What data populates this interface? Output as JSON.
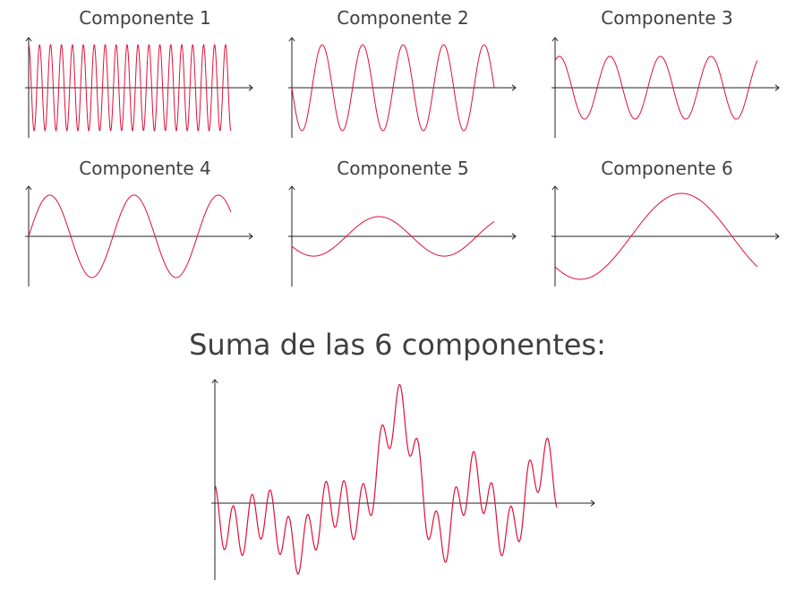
{
  "colors": {
    "curve": "#e0103a",
    "axis": "#222222"
  },
  "components": [
    {
      "title": "Componente 1",
      "amplitude": 1.0,
      "cycles": 18.5,
      "phase_deg": 90
    },
    {
      "title": "Componente 2",
      "amplitude": 1.0,
      "cycles": 5.0,
      "phase_deg": 180
    },
    {
      "title": "Componente 3",
      "amplitude": 0.73,
      "cycles": 4.0,
      "phase_deg": 60
    },
    {
      "title": "Componente 4",
      "amplitude": 0.96,
      "cycles": 2.4,
      "phase_deg": 0
    },
    {
      "title": "Componente 5",
      "amplitude": 0.46,
      "cycles": 1.55,
      "phase_deg": 210
    },
    {
      "title": "Componente 6",
      "amplitude": 1.0,
      "cycles": 1.0,
      "phase_deg": 225
    }
  ],
  "sum": {
    "title": "Suma de las 6 componentes:"
  }
}
